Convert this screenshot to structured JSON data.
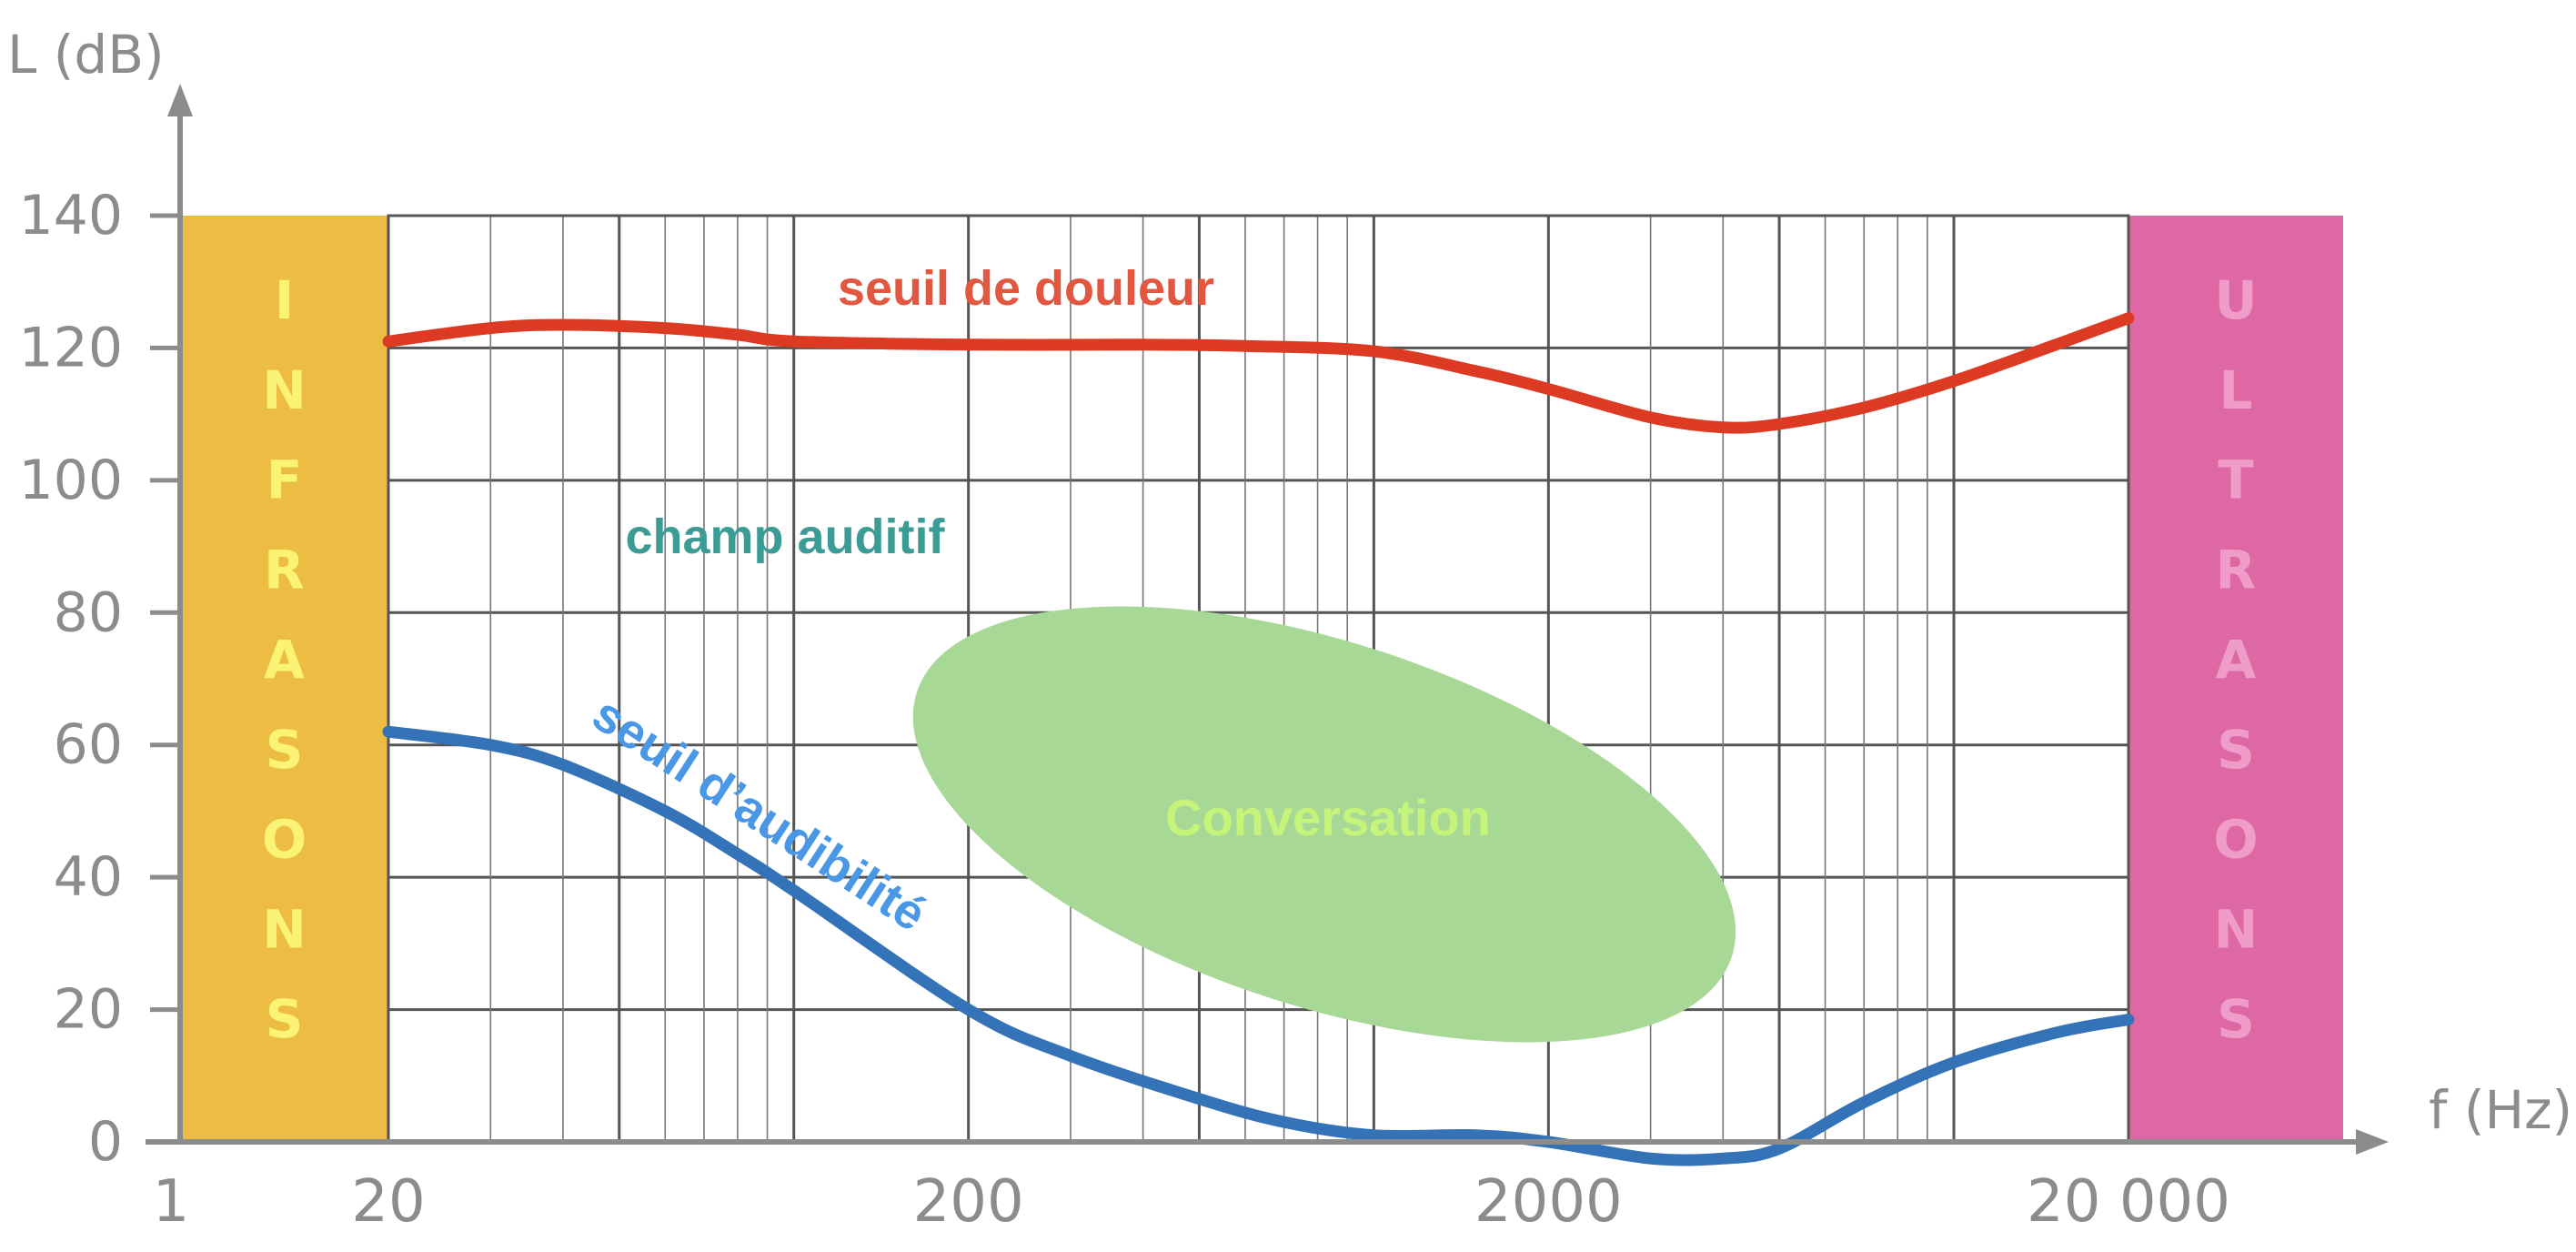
{
  "chart_data": {
    "type": "line",
    "xscale": "log",
    "xlim": [
      1,
      20000
    ],
    "ylim": [
      0,
      140
    ],
    "xlabel": "f (Hz)",
    "ylabel": "L (dB)",
    "x_tick_labels": [
      {
        "value": 1,
        "label": "1"
      },
      {
        "value": 20,
        "label": "20"
      },
      {
        "value": 200,
        "label": "200"
      },
      {
        "value": 2000,
        "label": "2000"
      },
      {
        "value": 20000,
        "label": "20 000"
      }
    ],
    "y_tick_labels": [
      {
        "value": 0,
        "label": "0"
      },
      {
        "value": 20,
        "label": "20"
      },
      {
        "value": 40,
        "label": "40"
      },
      {
        "value": 60,
        "label": "60"
      },
      {
        "value": 80,
        "label": "80"
      },
      {
        "value": 100,
        "label": "100"
      },
      {
        "value": 120,
        "label": "120"
      },
      {
        "value": 140,
        "label": "140"
      }
    ],
    "grid": true,
    "bands": [
      {
        "label": "INFRASONS",
        "x_from": 1,
        "x_to": 20,
        "color": "#ecbd42",
        "text_color": "#fbf374"
      },
      {
        "label": "ULTRASONS",
        "x_from": 20000,
        "x_to": 100000,
        "color": "#de68a4",
        "text_color": "#f09cc9"
      }
    ],
    "series": [
      {
        "name": "seuil de douleur",
        "color": "#dd3a24",
        "label_color": "#e2573f",
        "x": [
          20,
          30,
          40,
          60,
          80,
          100,
          200,
          400,
          600,
          1000,
          1500,
          2000,
          3000,
          4000,
          5000,
          7000,
          10000,
          15000,
          20000
        ],
        "y": [
          121,
          123,
          123.5,
          123,
          122,
          121,
          120.5,
          120.5,
          120.3,
          119.5,
          116.5,
          113.8,
          109.5,
          108,
          108.5,
          111,
          115,
          120.5,
          124.5
        ]
      },
      {
        "name": "seuil d'audibilité",
        "color": "#3473b8",
        "label_color": "#4a97e6",
        "x": [
          20,
          30,
          40,
          60,
          80,
          100,
          200,
          300,
          500,
          700,
          1000,
          1500,
          2000,
          3000,
          4000,
          5000,
          7000,
          10000,
          15000,
          20000
        ],
        "y": [
          62,
          60,
          57,
          50,
          43.5,
          38,
          20,
          13,
          6.5,
          3,
          1,
          1,
          0,
          -2.5,
          -2.5,
          -1,
          6,
          12,
          16.5,
          18.5
        ]
      }
    ],
    "regions": [
      {
        "label": "Conversation",
        "shape": "ellipse",
        "x_range": [
          150,
          4500
        ],
        "y_range": [
          10,
          86
        ],
        "color": "#a8d896",
        "label_color": "#c6f47a"
      }
    ],
    "annotations": [
      {
        "text": "champ auditif",
        "x": 100,
        "y": 90,
        "color": "#3a9c94"
      }
    ]
  }
}
